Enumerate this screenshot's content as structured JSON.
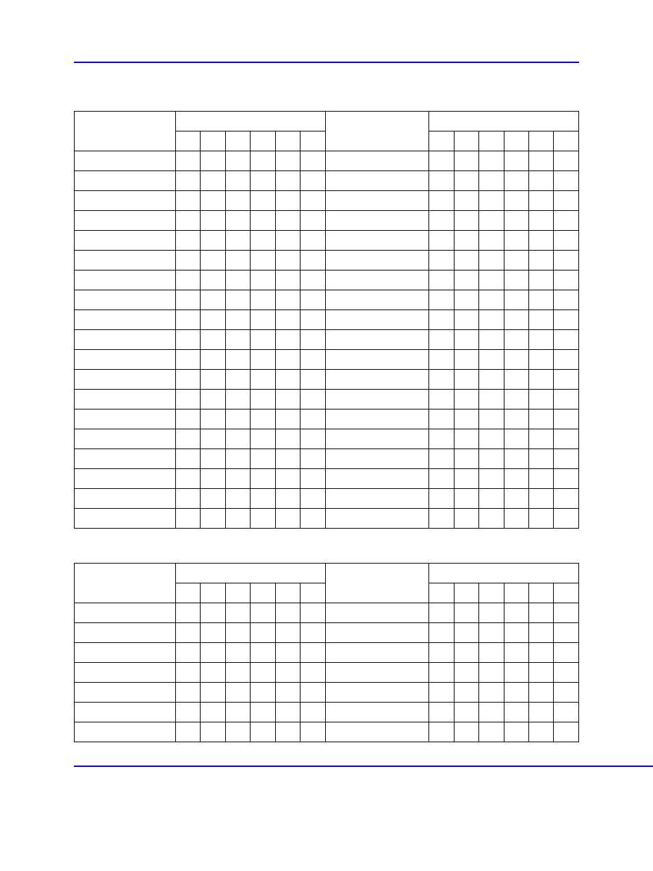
{
  "page": {
    "background_color": "#ffffff",
    "rule_color": "#0000ee",
    "border_color": "#000000"
  },
  "table1": {
    "columns_group_a_label": "",
    "columns_group_a_sub_count": 6,
    "columns_group_b_label": "",
    "columns_group_c_label": "",
    "columns_group_c_sub_count": 6,
    "label_col_width_ratio": 0.195,
    "small_col_width_ratio": 0.048,
    "mid_col_width_ratio": 0.2,
    "rows": [
      {
        "label": "",
        "a": [
          "",
          "",
          "",
          "",
          "",
          ""
        ],
        "b": "",
        "c": [
          "",
          "",
          "",
          "",
          "",
          ""
        ]
      },
      {
        "label": "",
        "a": [
          "",
          "",
          "",
          "",
          "",
          ""
        ],
        "b": "",
        "c": [
          "",
          "",
          "",
          "",
          "",
          ""
        ]
      },
      {
        "label": "",
        "a": [
          "",
          "",
          "",
          "",
          "",
          ""
        ],
        "b": "",
        "c": [
          "",
          "",
          "",
          "",
          "",
          ""
        ]
      },
      {
        "label": "",
        "a": [
          "",
          "",
          "",
          "",
          "",
          ""
        ],
        "b": "",
        "c": [
          "",
          "",
          "",
          "",
          "",
          ""
        ]
      },
      {
        "label": "",
        "a": [
          "",
          "",
          "",
          "",
          "",
          ""
        ],
        "b": "",
        "c": [
          "",
          "",
          "",
          "",
          "",
          ""
        ]
      },
      {
        "label": "",
        "a": [
          "",
          "",
          "",
          "",
          "",
          ""
        ],
        "b": "",
        "c": [
          "",
          "",
          "",
          "",
          "",
          ""
        ]
      },
      {
        "label": "",
        "a": [
          "",
          "",
          "",
          "",
          "",
          ""
        ],
        "b": "",
        "c": [
          "",
          "",
          "",
          "",
          "",
          ""
        ]
      },
      {
        "label": "",
        "a": [
          "",
          "",
          "",
          "",
          "",
          ""
        ],
        "b": "",
        "c": [
          "",
          "",
          "",
          "",
          "",
          ""
        ]
      },
      {
        "label": "",
        "a": [
          "",
          "",
          "",
          "",
          "",
          ""
        ],
        "b": "",
        "c": [
          "",
          "",
          "",
          "",
          "",
          ""
        ]
      },
      {
        "label": "",
        "a": [
          "",
          "",
          "",
          "",
          "",
          ""
        ],
        "b": "",
        "c": [
          "",
          "",
          "",
          "",
          "",
          ""
        ]
      },
      {
        "label": "",
        "a": [
          "",
          "",
          "",
          "",
          "",
          ""
        ],
        "b": "",
        "c": [
          "",
          "",
          "",
          "",
          "",
          ""
        ]
      },
      {
        "label": "",
        "a": [
          "",
          "",
          "",
          "",
          "",
          ""
        ],
        "b": "",
        "c": [
          "",
          "",
          "",
          "",
          "",
          ""
        ]
      },
      {
        "label": "",
        "a": [
          "",
          "",
          "",
          "",
          "",
          ""
        ],
        "b": "",
        "c": [
          "",
          "",
          "",
          "",
          "",
          ""
        ]
      },
      {
        "label": "",
        "a": [
          "",
          "",
          "",
          "",
          "",
          ""
        ],
        "b": "",
        "c": [
          "",
          "",
          "",
          "",
          "",
          ""
        ]
      },
      {
        "label": "",
        "a": [
          "",
          "",
          "",
          "",
          "",
          ""
        ],
        "b": "",
        "c": [
          "",
          "",
          "",
          "",
          "",
          ""
        ]
      },
      {
        "label": "",
        "a": [
          "",
          "",
          "",
          "",
          "",
          ""
        ],
        "b": "",
        "c": [
          "",
          "",
          "",
          "",
          "",
          ""
        ]
      },
      {
        "label": "",
        "a": [
          "",
          "",
          "",
          "",
          "",
          ""
        ],
        "b": "",
        "c": [
          "",
          "",
          "",
          "",
          "",
          ""
        ]
      },
      {
        "label": "",
        "a": [
          "",
          "",
          "",
          "",
          "",
          ""
        ],
        "b": "",
        "c": [
          "",
          "",
          "",
          "",
          "",
          ""
        ]
      },
      {
        "label": "",
        "a": [
          "",
          "",
          "",
          "",
          "",
          ""
        ],
        "b": "",
        "c": [
          "",
          "",
          "",
          "",
          "",
          ""
        ]
      }
    ]
  },
  "table2": {
    "columns_group_a_sub_count": 6,
    "columns_group_c_sub_count": 6,
    "rows": [
      {
        "label": "",
        "a": [
          "",
          "",
          "",
          "",
          "",
          ""
        ],
        "b": "",
        "c": [
          "",
          "",
          "",
          "",
          "",
          ""
        ]
      },
      {
        "label": "",
        "a": [
          "",
          "",
          "",
          "",
          "",
          ""
        ],
        "b": "",
        "c": [
          "",
          "",
          "",
          "",
          "",
          ""
        ]
      },
      {
        "label": "",
        "a": [
          "",
          "",
          "",
          "",
          "",
          ""
        ],
        "b": "",
        "c": [
          "",
          "",
          "",
          "",
          "",
          ""
        ]
      },
      {
        "label": "",
        "a": [
          "",
          "",
          "",
          "",
          "",
          ""
        ],
        "b": "",
        "c": [
          "",
          "",
          "",
          "",
          "",
          ""
        ]
      },
      {
        "label": "",
        "a": [
          "",
          "",
          "",
          "",
          "",
          ""
        ],
        "b": "",
        "c": [
          "",
          "",
          "",
          "",
          "",
          ""
        ]
      },
      {
        "label": "",
        "a": [
          "",
          "",
          "",
          "",
          "",
          ""
        ],
        "b": "",
        "c": [
          "",
          "",
          "",
          "",
          "",
          ""
        ]
      },
      {
        "label": "",
        "a": [
          "",
          "",
          "",
          "",
          "",
          ""
        ],
        "b": "",
        "c": [
          "",
          "",
          "",
          "",
          "",
          ""
        ]
      }
    ]
  }
}
